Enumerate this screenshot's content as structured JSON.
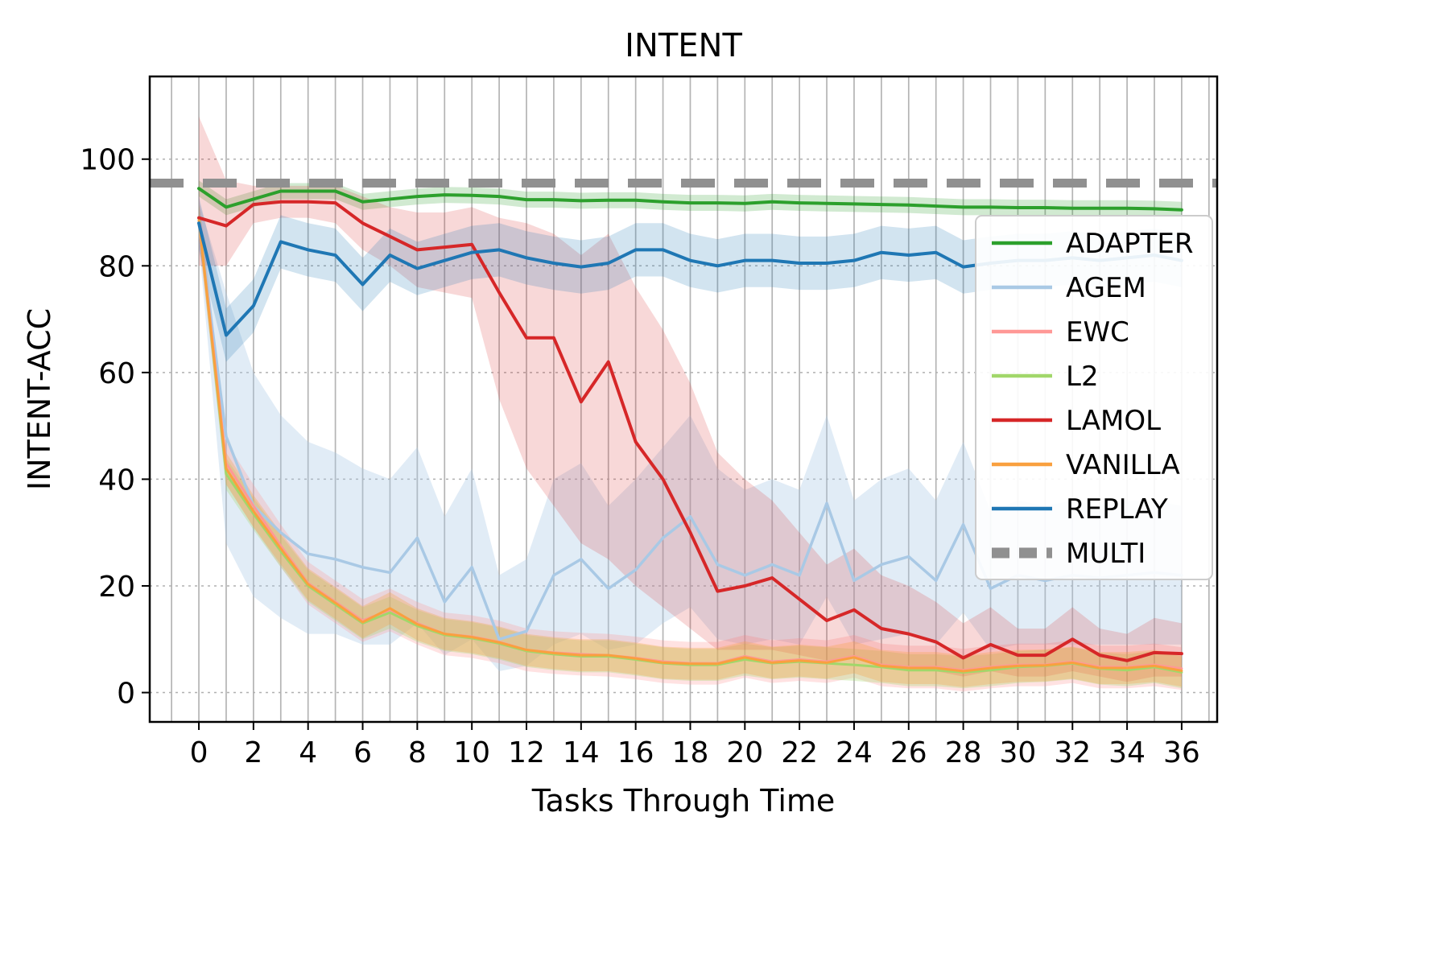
{
  "figure": {
    "title": "INTENT",
    "xlabel": "Tasks Through Time",
    "ylabel": "INTENT-ACC"
  },
  "chart_data": {
    "type": "line",
    "title": "INTENT",
    "xlabel": "Tasks Through Time",
    "ylabel": "INTENT-ACC",
    "x_range": [
      0,
      36
    ],
    "xticks": [
      0,
      2,
      4,
      6,
      8,
      10,
      12,
      14,
      16,
      18,
      20,
      22,
      24,
      26,
      28,
      30,
      32,
      34,
      36
    ],
    "yticks": [
      0,
      20,
      40,
      60,
      80,
      100
    ],
    "xlim": [
      -1.8,
      37.3
    ],
    "ylim": [
      -5.5,
      115.5
    ],
    "grid": {
      "vertical": "every-integer",
      "horizontal": "at-yticks",
      "color": "#9b9b9b"
    },
    "legend_position": "upper right inside",
    "series": [
      {
        "name": "ADAPTER",
        "color": "#2ca02c",
        "line_width": 4,
        "band_halfwidth": 1.5,
        "band_opacity": 0.22,
        "values": [
          94.5,
          91,
          92.5,
          94,
          94,
          94,
          92,
          92.5,
          93,
          93.3,
          93.2,
          93,
          92.4,
          92.4,
          92.2,
          92.3,
          92.3,
          92,
          91.8,
          91.8,
          91.7,
          92,
          91.8,
          91.7,
          91.6,
          91.5,
          91.4,
          91.2,
          91,
          91,
          90.9,
          90.9,
          90.8,
          90.8,
          90.8,
          90.7,
          90.5
        ]
      },
      {
        "name": "AGEM",
        "color": "#a9c9e5",
        "line_width": 3.5,
        "band_opacity": 0.35,
        "values": [
          88,
          48,
          35,
          30,
          26,
          25,
          23.5,
          22.5,
          29,
          17,
          23.5,
          10,
          11.5,
          22,
          25,
          19.5,
          23,
          29,
          33,
          24,
          22,
          24,
          22,
          35.5,
          21,
          24,
          25.5,
          21,
          31.5,
          19.5,
          22,
          21,
          22,
          21.5,
          22,
          22.5,
          22
        ],
        "band": {
          "upper": [
            92,
            75,
            60,
            52,
            47,
            45,
            42,
            40,
            46,
            33,
            42,
            22,
            25,
            40,
            43,
            35,
            40,
            46,
            52,
            42,
            38,
            40,
            38,
            52,
            36,
            40,
            42,
            36,
            47,
            34,
            36,
            35,
            36,
            35,
            36,
            36,
            35
          ],
          "lower": [
            84,
            28,
            18,
            14,
            11,
            11,
            9,
            9,
            13,
            7,
            10,
            4,
            5,
            9,
            11,
            8,
            9,
            13,
            16,
            10,
            9,
            10,
            9,
            18,
            9,
            10,
            11,
            9,
            15,
            8,
            9,
            9,
            9,
            9,
            9,
            9,
            9
          ]
        }
      },
      {
        "name": "EWC",
        "color": "#ff9896",
        "line_width": 3,
        "band_halfwidth": 4,
        "band_opacity": 0.28,
        "values": [
          89,
          43,
          35,
          27.5,
          20.5,
          17,
          13.5,
          15.5,
          13,
          11,
          10.5,
          9.5,
          8,
          7.5,
          7.2,
          7,
          6.5,
          5.8,
          5.5,
          5.5,
          6.8,
          5.8,
          6.2,
          5.8,
          6.8,
          5.2,
          4.8,
          4.8,
          4.2,
          4.8,
          5.2,
          5.2,
          5.8,
          4.8,
          4.8,
          5.2,
          4.5
        ]
      },
      {
        "name": "L2",
        "color": "#a1d76a",
        "line_width": 3,
        "band_halfwidth": 3,
        "band_opacity": 0.3,
        "values": [
          89,
          41,
          33.5,
          26.5,
          20,
          16.5,
          13,
          15,
          12.5,
          10.8,
          10.2,
          9.2,
          7.8,
          7.2,
          6.8,
          6.8,
          6.2,
          5.5,
          5.2,
          5.2,
          6.2,
          5.5,
          5.8,
          5.5,
          5.2,
          4.8,
          4.2,
          4.2,
          3.8,
          4.2,
          4.8,
          5,
          5.5,
          4.5,
          4.2,
          4.8,
          3.8
        ]
      },
      {
        "name": "LAMOL",
        "color": "#d62728",
        "line_width": 4,
        "band_opacity": 0.18,
        "values": [
          89,
          87.5,
          91.5,
          92,
          92,
          91.8,
          88,
          85.5,
          83,
          83.5,
          84,
          75,
          66.5,
          66.5,
          54.5,
          62,
          47,
          40,
          30,
          19,
          20,
          21.5,
          17.5,
          13.5,
          15.5,
          12,
          11,
          9.5,
          6.5,
          9,
          7,
          7,
          10,
          7,
          6,
          7.5,
          7.3
        ],
        "band": {
          "upper": [
            108,
            96,
            95,
            95,
            95,
            95,
            93,
            91,
            90,
            90,
            91,
            89,
            88,
            86,
            82,
            86,
            76,
            68,
            58,
            45,
            40,
            36,
            30,
            24,
            27,
            22,
            20,
            17,
            13,
            16,
            12,
            12,
            16,
            12,
            11,
            14,
            13
          ],
          "lower": [
            80,
            80,
            88,
            89,
            89,
            88,
            83,
            80,
            76,
            75,
            74,
            55,
            42,
            35,
            28,
            25,
            20,
            16,
            12,
            8,
            8,
            8,
            7,
            6,
            7,
            5,
            5,
            4,
            3,
            4,
            3,
            3,
            4,
            3,
            2,
            3,
            3
          ]
        }
      },
      {
        "name": "VANILLA",
        "color": "#f9a03f",
        "line_width": 3,
        "band_halfwidth": 3,
        "band_opacity": 0.3,
        "values": [
          88.5,
          42,
          34,
          27,
          20.3,
          16.8,
          13.2,
          15.8,
          12.8,
          11,
          10.4,
          9.4,
          8,
          7.4,
          7,
          7,
          6.4,
          5.6,
          5.4,
          5.4,
          6.6,
          5.6,
          6,
          5.6,
          6.6,
          5,
          4.6,
          4.6,
          4,
          4.6,
          5,
          5.1,
          5.6,
          4.6,
          4.6,
          5,
          4.1
        ]
      },
      {
        "name": "REPLAY",
        "color": "#1f77b4",
        "line_width": 4,
        "band_halfwidth": 5,
        "band_opacity": 0.2,
        "values": [
          88,
          67,
          72.5,
          84.5,
          83,
          82,
          76.5,
          82,
          79.5,
          81,
          82.5,
          83,
          81.5,
          80.5,
          79.8,
          80.5,
          83,
          83,
          81,
          80,
          81,
          81,
          80.5,
          80.5,
          81,
          82.5,
          82,
          82.5,
          79.8,
          80.5,
          81,
          81,
          81.5,
          81,
          81.5,
          82,
          81
        ]
      },
      {
        "name": "MULTI",
        "color": "#909090",
        "line_width": 11,
        "dash": "42 24",
        "constant": 95.5,
        "span_full_width": true
      }
    ]
  }
}
